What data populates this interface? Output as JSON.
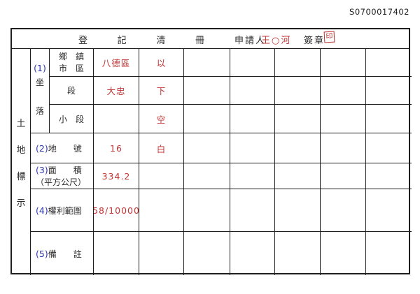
{
  "serial": "S0700017402",
  "header": {
    "title_chars": [
      "登",
      "記",
      "清",
      "冊"
    ],
    "applicant_label": "申請人",
    "applicant_name": "王○河",
    "signature_label": "簽章",
    "stamp": "印"
  },
  "side_label": {
    "chars": [
      "土",
      "地",
      "標",
      "示"
    ]
  },
  "location_group": {
    "num": "(1)",
    "char1": "坐",
    "char2": "落"
  },
  "row_labels": {
    "township_line1": "鄉　鎮",
    "township_line2": "市　區",
    "section": "段",
    "subsection": "小　段",
    "parcel_num": "(2)",
    "parcel_text": "地　　號",
    "area_num": "(3)",
    "area_text": "面　　積",
    "area_sub": "（平方公尺）",
    "rights_num": "(4)",
    "rights_text": "權利範圍",
    "notes_num": "(5)",
    "notes_text": "備　　註"
  },
  "values": {
    "township": "八德區",
    "section": "大忠",
    "subsection": "",
    "parcel": "16",
    "area": "334.2",
    "rights": "58/10000",
    "blank_marker": [
      "以",
      "下",
      "空",
      "白"
    ]
  },
  "colors": {
    "value_red": "#c23535",
    "label_blue": "#2b35b0",
    "grid_line": "#1f1f1f",
    "stamp_red": "#bb3333"
  }
}
